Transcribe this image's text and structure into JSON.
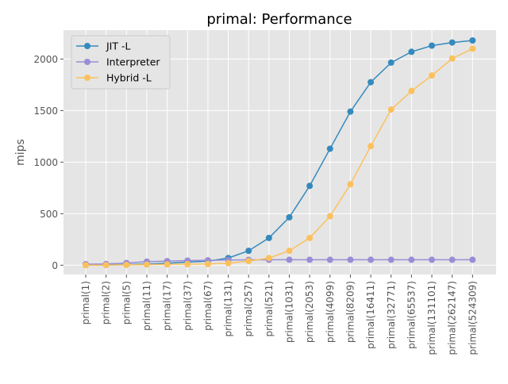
{
  "chart_data": {
    "type": "line",
    "title": "primal: Performance",
    "xlabel": "",
    "ylabel": "mips",
    "categories": [
      "primal(1)",
      "primal(2)",
      "primal(5)",
      "primal(11)",
      "primal(17)",
      "primal(37)",
      "primal(67)",
      "primal(131)",
      "primal(257)",
      "primal(521)",
      "primal(1031)",
      "primal(2053)",
      "primal(4099)",
      "primal(8209)",
      "primal(16411)",
      "primal(32771)",
      "primal(65537)",
      "primal(131101)",
      "primal(262147)",
      "primal(524309)"
    ],
    "ylim": [
      -90,
      2280
    ],
    "yticks": [
      0,
      500,
      1000,
      1500,
      2000
    ],
    "grid": true,
    "legend_position": "top-left",
    "series": [
      {
        "name": "JIT -L",
        "color": "#348ABD",
        "values": [
          2,
          3,
          6,
          12,
          20,
          30,
          40,
          70,
          140,
          265,
          465,
          770,
          1130,
          1490,
          1775,
          1965,
          2070,
          2130,
          2160,
          2180
        ]
      },
      {
        "name": "Interpreter",
        "color": "#988ED5",
        "values": [
          10,
          12,
          22,
          35,
          40,
          45,
          48,
          50,
          52,
          53,
          53,
          53,
          53,
          53,
          53,
          53,
          53,
          53,
          53,
          53
        ]
      },
      {
        "name": "Hybrid -L",
        "color": "#FBC15E",
        "values": [
          0,
          1,
          3,
          6,
          8,
          10,
          12,
          20,
          40,
          70,
          140,
          265,
          475,
          785,
          1155,
          1510,
          1690,
          1840,
          2005,
          2100
        ]
      }
    ]
  }
}
